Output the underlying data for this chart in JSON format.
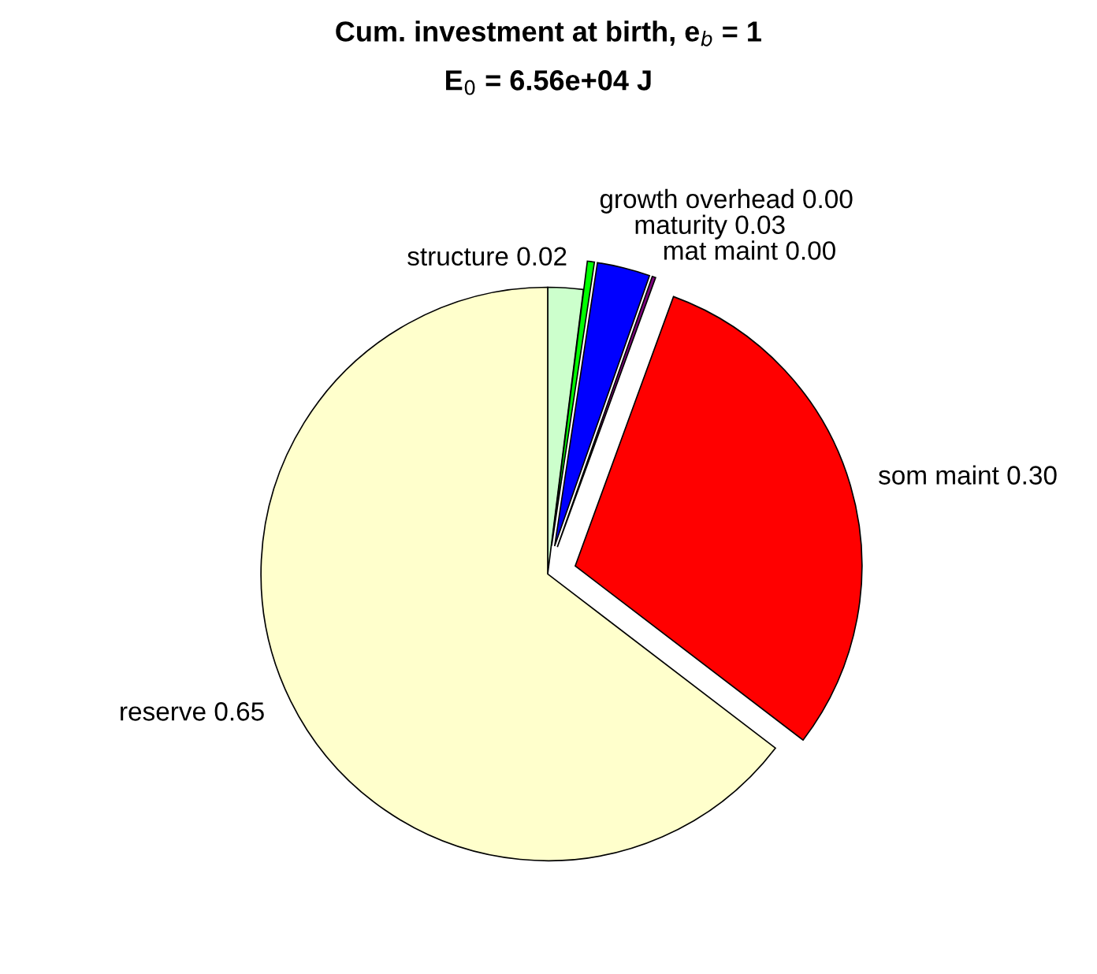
{
  "chart_data": {
    "type": "pie",
    "title": "Cum. investment at birth, e$_{b}$ = 1",
    "subtitle": "E$_{0}$ = 6.56e+04 J",
    "categories": [
      "structure",
      "growth overhead",
      "maturity",
      "mat maint",
      "som maint",
      "reserve"
    ],
    "values": [
      0.02,
      0.004,
      0.03,
      0.002,
      0.3,
      0.65
    ],
    "value_labels": [
      "0.02",
      "0.00",
      "0.03",
      "0.00",
      "0.30",
      "0.65"
    ],
    "colors": [
      "#ccffcc",
      "#00ff00",
      "#0000ff",
      "#800080",
      "#ff0000",
      "#ffffcc"
    ],
    "legend": false
  }
}
